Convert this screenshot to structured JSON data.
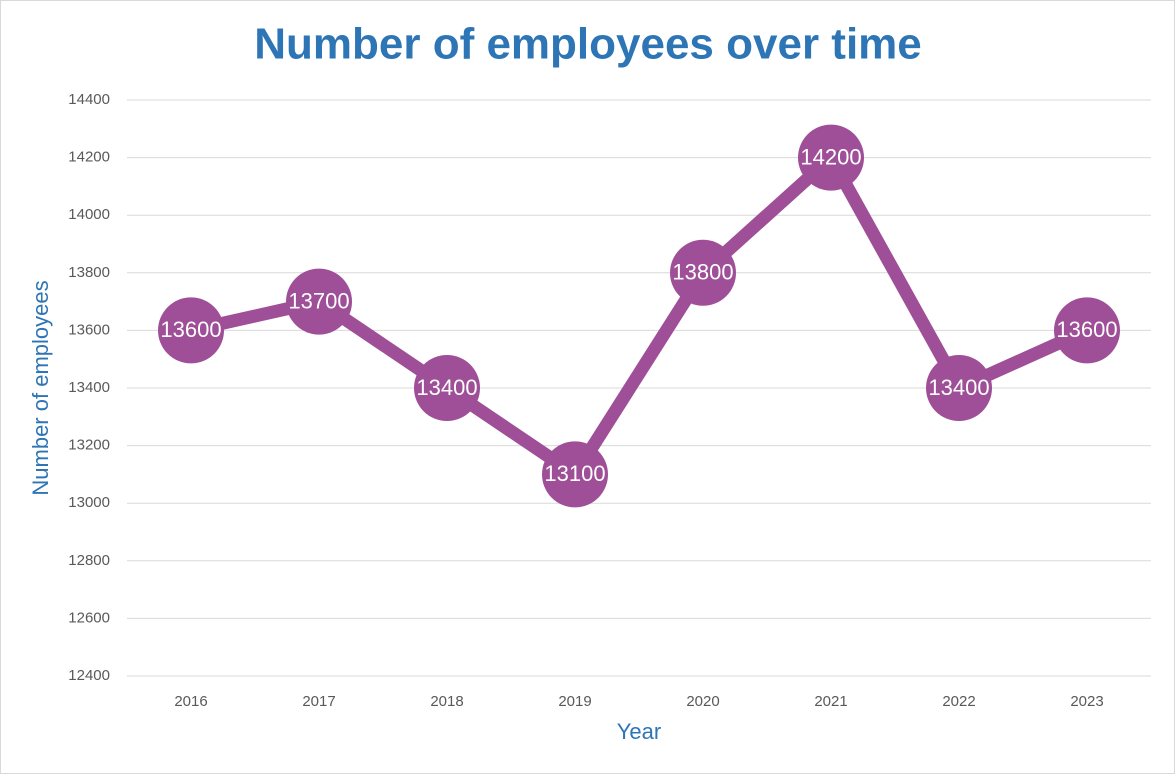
{
  "chart_data": {
    "type": "line",
    "title": "Number of employees over time",
    "x_label": "Year",
    "y_label": "Number of employees",
    "categories": [
      "2016",
      "2017",
      "2018",
      "2019",
      "2020",
      "2021",
      "2022",
      "2023"
    ],
    "values": [
      13600,
      13700,
      13400,
      13100,
      13800,
      14200,
      13400,
      13600
    ],
    "color": "#9e4f97",
    "ylim": [
      12400,
      14400
    ],
    "yticks": [
      12400,
      12600,
      12800,
      13000,
      13200,
      13400,
      13600,
      13800,
      14000,
      14200,
      14400
    ],
    "grid": true
  }
}
